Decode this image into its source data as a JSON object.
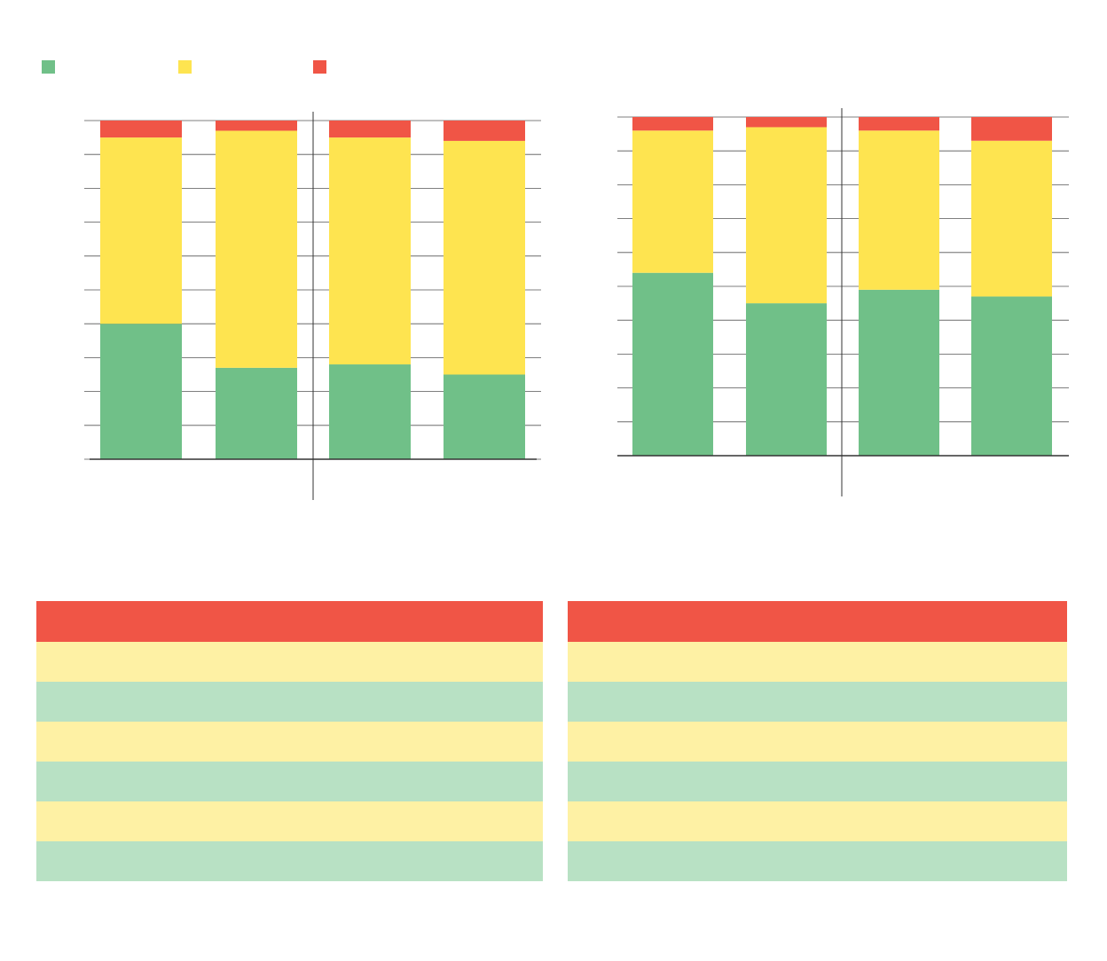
{
  "colors": {
    "green": "#70c088",
    "yellow": "#fee450",
    "red": "#f05546",
    "header_row": "#f05546",
    "row_yellow": "#fef1a4",
    "row_green": "#b8e1c4"
  },
  "legend": [
    {
      "label": "",
      "color": "#70c088"
    },
    {
      "label": "",
      "color": "#fee450"
    },
    {
      "label": "",
      "color": "#f05546"
    }
  ],
  "chart_data": [
    {
      "type": "bar",
      "stacked": true,
      "categories": [
        "",
        "",
        "",
        ""
      ],
      "series": [
        {
          "color": "#70c088",
          "values": [
            40,
            27,
            28,
            25
          ]
        },
        {
          "color": "#fee450",
          "values": [
            55,
            70,
            67,
            69
          ]
        },
        {
          "color": "#f05546",
          "values": [
            5,
            3,
            5,
            6
          ]
        }
      ],
      "ylim": [
        0,
        100
      ],
      "grid": true,
      "title": "",
      "xlabel": "",
      "ylabel": ""
    },
    {
      "type": "bar",
      "stacked": true,
      "categories": [
        "",
        "",
        "",
        ""
      ],
      "series": [
        {
          "color": "#70c088",
          "values": [
            54,
            45,
            49,
            47
          ]
        },
        {
          "color": "#fee450",
          "values": [
            42,
            52,
            47,
            46
          ]
        },
        {
          "color": "#f05546",
          "values": [
            4,
            3,
            4,
            7
          ]
        }
      ],
      "ylim": [
        0,
        100
      ],
      "grid": true,
      "title": "",
      "xlabel": "",
      "ylabel": ""
    }
  ],
  "tables": [
    {
      "rows": [
        [
          "",
          ""
        ],
        [
          "",
          ""
        ],
        [
          "",
          ""
        ],
        [
          "",
          ""
        ],
        [
          "",
          ""
        ],
        [
          "",
          ""
        ],
        [
          "",
          ""
        ]
      ]
    },
    {
      "rows": [
        [
          "",
          ""
        ],
        [
          "",
          ""
        ],
        [
          "",
          ""
        ],
        [
          "",
          ""
        ],
        [
          "",
          ""
        ],
        [
          "",
          ""
        ],
        [
          "",
          ""
        ]
      ]
    }
  ]
}
